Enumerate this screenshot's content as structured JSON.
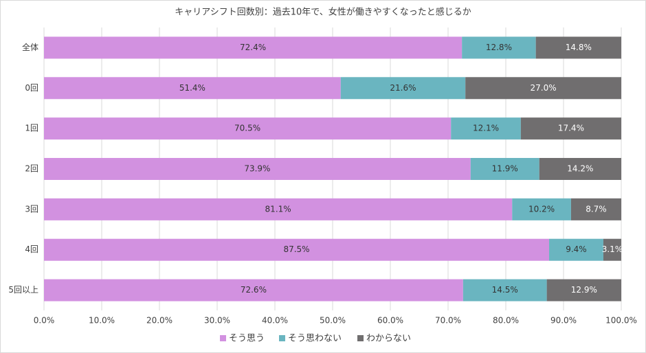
{
  "chart_data": {
    "type": "stacked-bar-horizontal",
    "title": "キャリアシフト回数別：過去10年で、女性が働きやすくなったと感じるか",
    "categories": [
      "全体",
      "0回",
      "1回",
      "2回",
      "3回",
      "4回",
      "5回以上"
    ],
    "series": [
      {
        "name": "そう思う",
        "color": "#d291e0",
        "values": [
          72.4,
          51.4,
          70.5,
          73.9,
          81.1,
          87.5,
          72.6
        ],
        "value_labels": [
          "72.4%",
          "51.4%",
          "70.5%",
          "73.9%",
          "81.1%",
          "87.5%",
          "72.6%"
        ]
      },
      {
        "name": "そう思わない",
        "color": "#6ab5c0",
        "values": [
          12.8,
          21.6,
          12.1,
          11.9,
          10.2,
          9.4,
          14.5
        ],
        "value_labels": [
          "12.8%",
          "21.6%",
          "12.1%",
          "11.9%",
          "10.2%",
          "9.4%",
          "14.5%"
        ]
      },
      {
        "name": "わからない",
        "color": "#706e6f",
        "values": [
          14.8,
          27.0,
          17.4,
          14.2,
          8.7,
          3.1,
          12.9
        ],
        "value_labels": [
          "14.8%",
          "27.0%",
          "17.4%",
          "14.2%",
          "8.7%",
          "3.1%",
          "12.9%"
        ]
      }
    ],
    "xlim": [
      0,
      100
    ],
    "xticks": [
      {
        "value": 0,
        "label": "0.0%"
      },
      {
        "value": 10,
        "label": "10.0%"
      },
      {
        "value": 20,
        "label": "20.0%"
      },
      {
        "value": 30,
        "label": "30.0%"
      },
      {
        "value": 40,
        "label": "40.0%"
      },
      {
        "value": 50,
        "label": "50.0%"
      },
      {
        "value": 60,
        "label": "60.0%"
      },
      {
        "value": 70,
        "label": "70.0%"
      },
      {
        "value": 80,
        "label": "80.0%"
      },
      {
        "value": 90,
        "label": "90.0%"
      },
      {
        "value": 100,
        "label": "100.0%"
      }
    ],
    "grid": true,
    "legend": "bottom"
  }
}
